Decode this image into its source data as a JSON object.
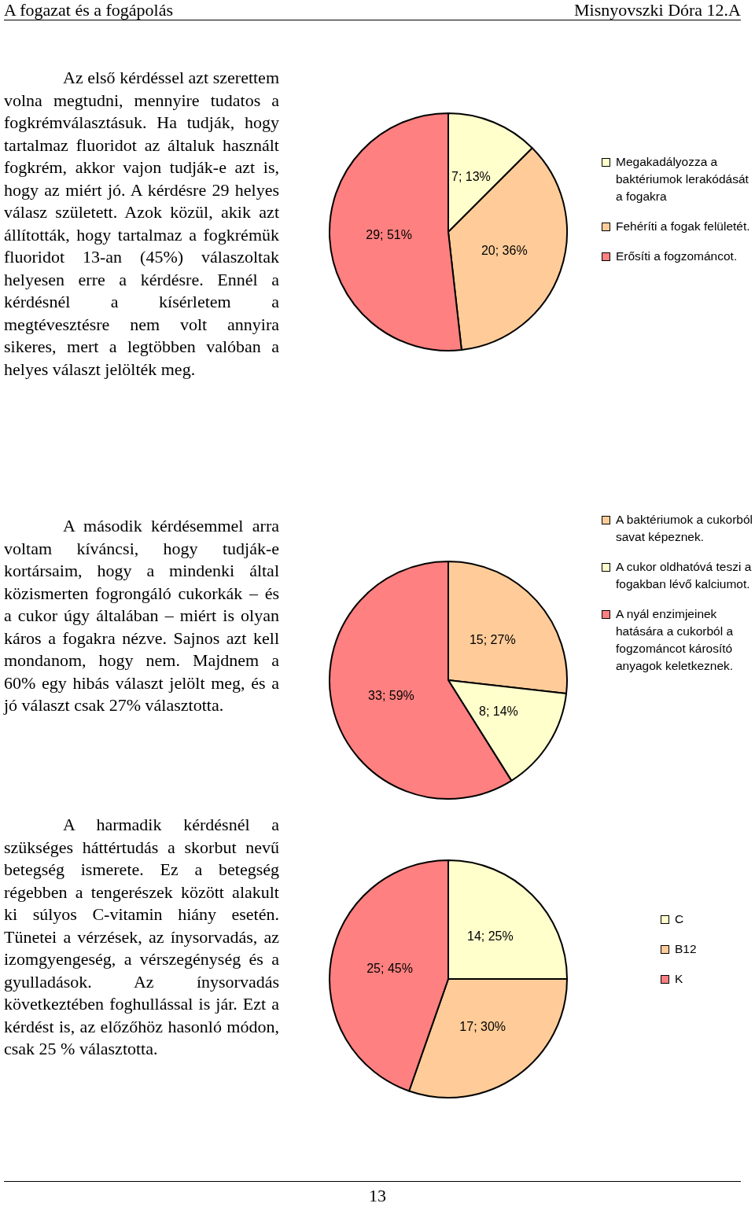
{
  "chart_data": [
    {
      "type": "pie",
      "title": "A fogazat és a fogápolás",
      "subtitle": "Misnyovszki Dóra 12.A",
      "categories": [
        "Megakadályozza a baktériumok lerakódását a fogakra",
        "Fehéríti a fogak felületét.",
        "Erősíti a fogzománcot."
      ],
      "values": [
        7,
        20,
        29
      ],
      "value_labels": [
        "7; 13%",
        "20; 36%",
        "29; 51%"
      ],
      "colors": [
        "#ffffcc",
        "#ffcc99",
        "#ff8080"
      ],
      "legend": "right",
      "annotations": [
        "Az első kérdéssel azt szerettem volna megtudni, mennyire tudatos a fogkrémválasztásuk. Ha tudják, hogy tartalmaz fluoridot az általuk használt fogkrém, akkor vajon tudják-e azt is, hogy az miért jó. A kérdésre 29 helyes válasz született. Azok közül, akik azt állították, hogy tartalmaz a fogkrémük fluoridot 13-an (45%) válaszoltak helyesen erre a kérdésre. Ennél a kérdésnél a kísérletem a megtévesztésre nem volt annyira sikeres, mert a legtöbben valóban a helyes választ jelölték meg."
      ]
    },
    {
      "type": "pie",
      "categories": [
        "A baktériumok a cukorból savat képeznek.",
        "A cukor oldhatóvá teszi a fogakban lévő kalciumot.",
        "A nyál enzimjeinek hatására a cukorból a fogzománcot károsító anyagok keletkeznek."
      ],
      "values": [
        15,
        8,
        33
      ],
      "value_labels": [
        "15; 27%",
        "8; 14%",
        "33; 59%"
      ],
      "colors": [
        "#ffcc99",
        "#ffffcc",
        "#ff8080"
      ],
      "legend": "right",
      "annotations": [
        "A második kérdésemmel arra voltam kíváncsi, hogy tudják-e kortársaim, hogy a mindenki által közismerten fogrongáló cukorkák – és a cukor úgy általában – miért is olyan káros a fogakra nézve. Sajnos azt kell mondanom, hogy nem. Majdnem a 60% egy hibás választ jelölt meg, és a jó választ csak 27% választotta."
      ]
    },
    {
      "type": "pie",
      "categories": [
        "C",
        "B12",
        "K"
      ],
      "values": [
        14,
        17,
        25
      ],
      "value_labels": [
        "14; 25%",
        "17; 30%",
        "25; 45%"
      ],
      "colors": [
        "#ffffcc",
        "#ffcc99",
        "#ff8080"
      ],
      "legend": "right",
      "annotations": [
        "A harmadik kérdésnél a szükséges háttértudás a skorbut nevű betegség ismerete. Ez a betegség régebben a tengerészek között alakult ki súlyos C-vitamin hiány esetén. Tünetei a vérzések, az ínysorvadás, az izomgyengeség, a vérszegénység és a gyulladások. Az ínysorvadás következtében foghullással is jár. Ezt a kérdést is, az előzőhöz hasonló módon, csak 25 % választotta.",
        "13"
      ]
    }
  ]
}
